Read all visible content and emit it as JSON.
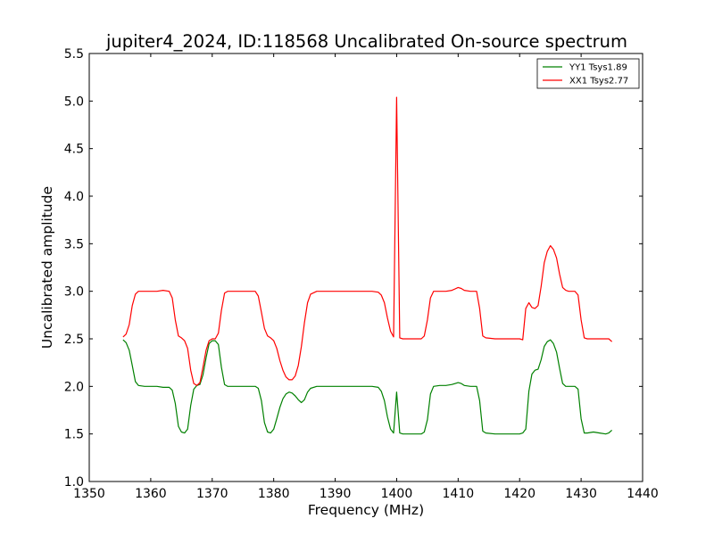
{
  "chart_data": {
    "type": "line",
    "title": "jupiter4_2024, ID:118568 Uncalibrated On-source spectrum",
    "xlabel": "Frequency (MHz)",
    "ylabel": "Uncalibrated amplitude",
    "xlim": [
      1350,
      1440
    ],
    "ylim": [
      1.0,
      5.5
    ],
    "xticks": [
      "1350",
      "1360",
      "1370",
      "1380",
      "1390",
      "1400",
      "1410",
      "1420",
      "1430",
      "1440"
    ],
    "yticks": [
      "1.0",
      "1.5",
      "2.0",
      "2.5",
      "3.0",
      "3.5",
      "4.0",
      "4.5",
      "5.0",
      "5.5"
    ],
    "grid": false,
    "legend_position": "top-right",
    "series": [
      {
        "name": "YY1 Tsys1.89",
        "color": "#008000",
        "points": [
          [
            1355.5,
            2.49
          ],
          [
            1356,
            2.46
          ],
          [
            1356.5,
            2.38
          ],
          [
            1357,
            2.22
          ],
          [
            1357.5,
            2.05
          ],
          [
            1358,
            2.01
          ],
          [
            1359,
            2.0
          ],
          [
            1360,
            2.0
          ],
          [
            1361,
            2.0
          ],
          [
            1362,
            1.99
          ],
          [
            1363,
            1.99
          ],
          [
            1363.5,
            1.96
          ],
          [
            1364,
            1.82
          ],
          [
            1364.5,
            1.58
          ],
          [
            1365,
            1.52
          ],
          [
            1365.5,
            1.51
          ],
          [
            1366,
            1.55
          ],
          [
            1366.5,
            1.8
          ],
          [
            1367,
            1.97
          ],
          [
            1367.5,
            2.01
          ],
          [
            1368,
            2.02
          ],
          [
            1368.5,
            2.12
          ],
          [
            1369,
            2.3
          ],
          [
            1369.5,
            2.45
          ],
          [
            1370,
            2.48
          ],
          [
            1370.5,
            2.48
          ],
          [
            1371,
            2.44
          ],
          [
            1371.5,
            2.2
          ],
          [
            1372,
            2.02
          ],
          [
            1372.5,
            2.0
          ],
          [
            1374,
            2.0
          ],
          [
            1376,
            2.0
          ],
          [
            1377,
            2.0
          ],
          [
            1377.5,
            1.98
          ],
          [
            1378,
            1.85
          ],
          [
            1378.5,
            1.62
          ],
          [
            1379,
            1.52
          ],
          [
            1379.5,
            1.51
          ],
          [
            1380,
            1.55
          ],
          [
            1380.5,
            1.66
          ],
          [
            1381,
            1.78
          ],
          [
            1381.5,
            1.87
          ],
          [
            1382,
            1.92
          ],
          [
            1382.5,
            1.94
          ],
          [
            1383,
            1.93
          ],
          [
            1383.5,
            1.9
          ],
          [
            1384,
            1.86
          ],
          [
            1384.5,
            1.83
          ],
          [
            1385,
            1.86
          ],
          [
            1385.5,
            1.94
          ],
          [
            1386,
            1.98
          ],
          [
            1387,
            2.0
          ],
          [
            1390,
            2.0
          ],
          [
            1394,
            2.0
          ],
          [
            1396,
            2.0
          ],
          [
            1397,
            1.99
          ],
          [
            1397.5,
            1.95
          ],
          [
            1398,
            1.85
          ],
          [
            1398.5,
            1.68
          ],
          [
            1399,
            1.55
          ],
          [
            1399.5,
            1.51
          ],
          [
            1400,
            1.94
          ],
          [
            1400.5,
            1.51
          ],
          [
            1401,
            1.5
          ],
          [
            1404,
            1.5
          ],
          [
            1404.5,
            1.52
          ],
          [
            1405,
            1.65
          ],
          [
            1405.5,
            1.92
          ],
          [
            1406,
            2.0
          ],
          [
            1407,
            2.01
          ],
          [
            1408,
            2.01
          ],
          [
            1409,
            2.02
          ],
          [
            1410,
            2.04
          ],
          [
            1410.5,
            2.03
          ],
          [
            1411,
            2.01
          ],
          [
            1412,
            2.0
          ],
          [
            1413,
            2.0
          ],
          [
            1413.5,
            1.85
          ],
          [
            1414,
            1.53
          ],
          [
            1414.5,
            1.51
          ],
          [
            1416,
            1.5
          ],
          [
            1418,
            1.5
          ],
          [
            1420,
            1.5
          ],
          [
            1420.5,
            1.51
          ],
          [
            1421,
            1.55
          ],
          [
            1421.5,
            1.95
          ],
          [
            1422,
            2.13
          ],
          [
            1422.5,
            2.17
          ],
          [
            1423,
            2.18
          ],
          [
            1423.5,
            2.28
          ],
          [
            1424,
            2.42
          ],
          [
            1424.5,
            2.47
          ],
          [
            1425,
            2.49
          ],
          [
            1425.5,
            2.45
          ],
          [
            1426,
            2.36
          ],
          [
            1426.5,
            2.19
          ],
          [
            1427,
            2.03
          ],
          [
            1427.5,
            2.0
          ],
          [
            1428,
            2.0
          ],
          [
            1429,
            2.0
          ],
          [
            1429.5,
            1.97
          ],
          [
            1430,
            1.66
          ],
          [
            1430.5,
            1.51
          ],
          [
            1431,
            1.51
          ],
          [
            1432,
            1.52
          ],
          [
            1433,
            1.51
          ],
          [
            1434,
            1.5
          ],
          [
            1434.5,
            1.51
          ],
          [
            1435,
            1.54
          ]
        ]
      },
      {
        "name": "XX1 Tsys2.77",
        "color": "#ff0000",
        "points": [
          [
            1355.5,
            2.52
          ],
          [
            1356,
            2.55
          ],
          [
            1356.5,
            2.65
          ],
          [
            1357,
            2.85
          ],
          [
            1357.5,
            2.97
          ],
          [
            1358,
            3.0
          ],
          [
            1359,
            3.0
          ],
          [
            1360,
            3.0
          ],
          [
            1361,
            3.0
          ],
          [
            1362,
            3.01
          ],
          [
            1363,
            3.0
          ],
          [
            1363.5,
            2.93
          ],
          [
            1364,
            2.7
          ],
          [
            1364.5,
            2.53
          ],
          [
            1365,
            2.51
          ],
          [
            1365.5,
            2.48
          ],
          [
            1366,
            2.4
          ],
          [
            1366.5,
            2.17
          ],
          [
            1367,
            2.03
          ],
          [
            1367.5,
            2.01
          ],
          [
            1368,
            2.04
          ],
          [
            1368.5,
            2.2
          ],
          [
            1369,
            2.38
          ],
          [
            1369.5,
            2.48
          ],
          [
            1370,
            2.5
          ],
          [
            1370.5,
            2.5
          ],
          [
            1371,
            2.56
          ],
          [
            1371.5,
            2.8
          ],
          [
            1372,
            2.98
          ],
          [
            1372.5,
            3.0
          ],
          [
            1374,
            3.0
          ],
          [
            1376,
            3.0
          ],
          [
            1377,
            3.0
          ],
          [
            1377.5,
            2.95
          ],
          [
            1378,
            2.78
          ],
          [
            1378.5,
            2.61
          ],
          [
            1379,
            2.53
          ],
          [
            1379.5,
            2.51
          ],
          [
            1380,
            2.48
          ],
          [
            1380.5,
            2.4
          ],
          [
            1381,
            2.27
          ],
          [
            1381.5,
            2.17
          ],
          [
            1382,
            2.1
          ],
          [
            1382.5,
            2.07
          ],
          [
            1383,
            2.07
          ],
          [
            1383.5,
            2.11
          ],
          [
            1384,
            2.22
          ],
          [
            1384.5,
            2.42
          ],
          [
            1385,
            2.67
          ],
          [
            1385.5,
            2.88
          ],
          [
            1386,
            2.97
          ],
          [
            1387,
            3.0
          ],
          [
            1390,
            3.0
          ],
          [
            1394,
            3.0
          ],
          [
            1396,
            3.0
          ],
          [
            1397,
            2.99
          ],
          [
            1397.5,
            2.96
          ],
          [
            1398,
            2.88
          ],
          [
            1398.5,
            2.72
          ],
          [
            1399,
            2.58
          ],
          [
            1399.5,
            2.52
          ],
          [
            1400,
            5.04
          ],
          [
            1400.5,
            2.51
          ],
          [
            1401,
            2.5
          ],
          [
            1404,
            2.5
          ],
          [
            1404.5,
            2.53
          ],
          [
            1405,
            2.7
          ],
          [
            1405.5,
            2.93
          ],
          [
            1406,
            3.0
          ],
          [
            1407,
            3.0
          ],
          [
            1408,
            3.0
          ],
          [
            1409,
            3.01
          ],
          [
            1410,
            3.04
          ],
          [
            1410.5,
            3.03
          ],
          [
            1411,
            3.01
          ],
          [
            1412,
            3.0
          ],
          [
            1413,
            3.0
          ],
          [
            1413.5,
            2.82
          ],
          [
            1414,
            2.53
          ],
          [
            1414.5,
            2.51
          ],
          [
            1416,
            2.5
          ],
          [
            1418,
            2.5
          ],
          [
            1420,
            2.5
          ],
          [
            1420.5,
            2.49
          ],
          [
            1421,
            2.82
          ],
          [
            1421.5,
            2.88
          ],
          [
            1422,
            2.83
          ],
          [
            1422.5,
            2.82
          ],
          [
            1423,
            2.85
          ],
          [
            1423.5,
            3.05
          ],
          [
            1424,
            3.3
          ],
          [
            1424.5,
            3.42
          ],
          [
            1425,
            3.48
          ],
          [
            1425.5,
            3.44
          ],
          [
            1426,
            3.35
          ],
          [
            1426.5,
            3.18
          ],
          [
            1427,
            3.04
          ],
          [
            1427.5,
            3.01
          ],
          [
            1428,
            3.0
          ],
          [
            1429,
            3.0
          ],
          [
            1429.5,
            2.96
          ],
          [
            1430,
            2.7
          ],
          [
            1430.5,
            2.51
          ],
          [
            1431,
            2.5
          ],
          [
            1432,
            2.5
          ],
          [
            1433,
            2.5
          ],
          [
            1434,
            2.5
          ],
          [
            1434.5,
            2.5
          ],
          [
            1435,
            2.47
          ]
        ]
      }
    ]
  }
}
